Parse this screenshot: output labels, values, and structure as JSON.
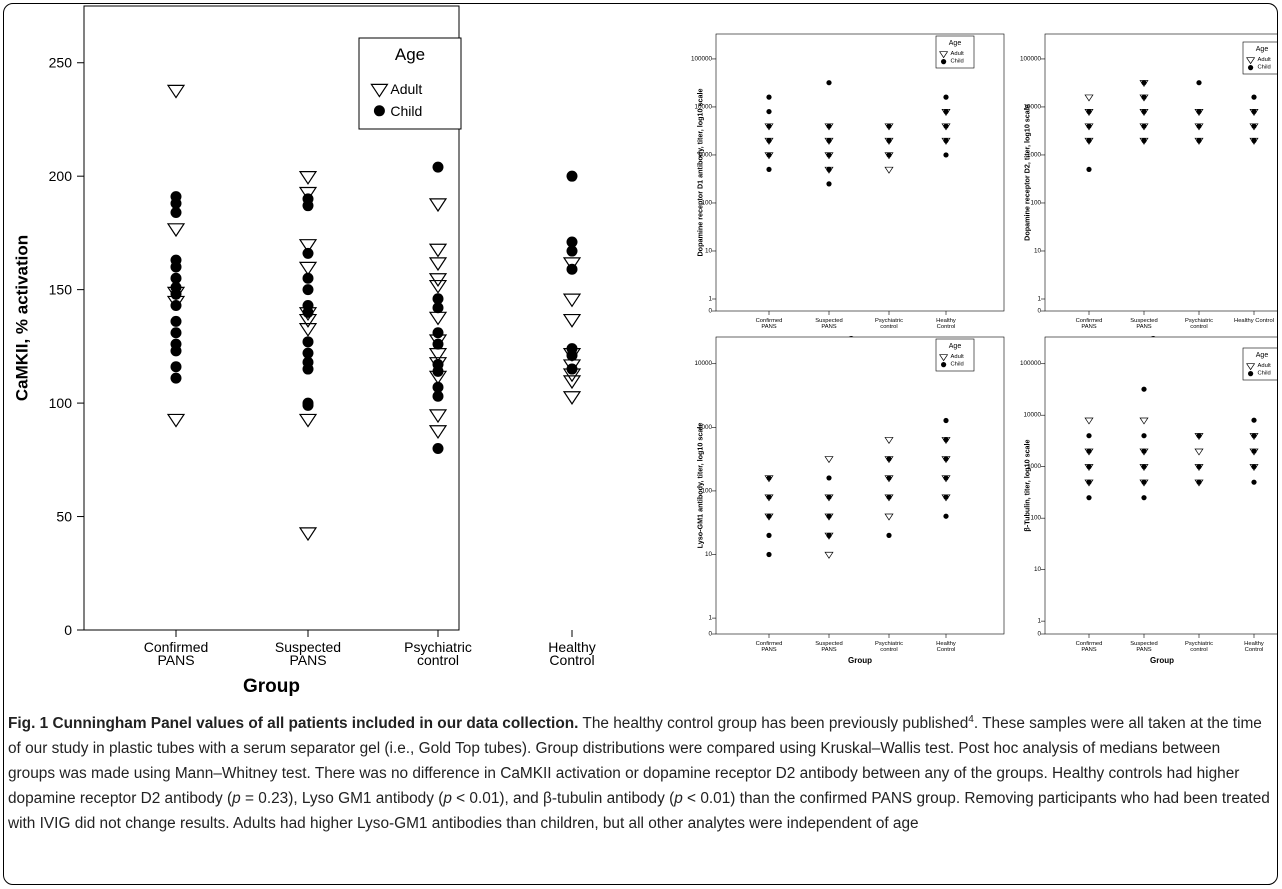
{
  "caption": {
    "label": "Fig. 1",
    "title": "Cunningham Panel values of all patients included in our data collection.",
    "parts": [
      {
        "t": " The healthy control group has been previously published"
      },
      {
        "t": "4",
        "sup": true
      },
      {
        "t": ". These samples were all taken at the time of our study in plastic tubes with a serum separator gel (i.e., Gold Top tubes). Group distributions were compared using Kruskal–Wallis test. Post hoc analysis of medians between groups was made using Mann–Whitney test. There was no difference in CaMKII activation or dopamine receptor D2 antibody between any of the groups. Healthy controls had higher dopamine receptor D2 antibody ("
      },
      {
        "t": "p",
        "i": true
      },
      {
        "t": " = 0.23), Lyso GM1 antibody ("
      },
      {
        "t": "p",
        "i": true
      },
      {
        "t": " < 0.01), and β-tubulin antibody ("
      },
      {
        "t": "p",
        "i": true
      },
      {
        "t": " < 0.01) than the confirmed PANS group. Removing participants who had been treated with IVIG did not change results. Adults had higher Lyso-GM1 antibodies than children, but all other analytes were independent of age"
      }
    ]
  },
  "chart_data": [
    {
      "id": "camkii",
      "type": "scatter",
      "title": "",
      "xlabel": "Group",
      "ylabel": "CaMKII, % activation",
      "ylim": [
        0,
        275
      ],
      "yticks": [
        0,
        50,
        100,
        150,
        200,
        250
      ],
      "scale": "linear",
      "categories": [
        "Confirmed\nPANS",
        "Suspected\nPANS",
        "Psychiatric\ncontrol",
        "Healthy\nControl"
      ],
      "legend": {
        "title": "Age",
        "position": "top-right",
        "entries": [
          "Adult",
          "Child"
        ]
      },
      "series": [
        {
          "name": "Adult",
          "marker": "triangle-down-open",
          "points": [
            [
              0,
              238
            ],
            [
              0,
              177
            ],
            [
              0,
              149
            ],
            [
              0,
              145
            ],
            [
              0,
              93
            ],
            [
              1,
              200
            ],
            [
              1,
              193
            ],
            [
              1,
              170
            ],
            [
              1,
              160
            ],
            [
              1,
              140
            ],
            [
              1,
              137
            ],
            [
              1,
              133
            ],
            [
              1,
              93
            ],
            [
              1,
              43
            ],
            [
              2,
              188
            ],
            [
              2,
              168
            ],
            [
              2,
              162
            ],
            [
              2,
              155
            ],
            [
              2,
              152
            ],
            [
              2,
              138
            ],
            [
              2,
              128
            ],
            [
              2,
              122
            ],
            [
              2,
              118
            ],
            [
              2,
              112
            ],
            [
              2,
              95
            ],
            [
              2,
              88
            ],
            [
              3,
              162
            ],
            [
              3,
              146
            ],
            [
              3,
              137
            ],
            [
              3,
              122
            ],
            [
              3,
              117
            ],
            [
              3,
              113
            ],
            [
              3,
              110
            ],
            [
              3,
              103
            ]
          ]
        },
        {
          "name": "Child",
          "marker": "circle-filled",
          "points": [
            [
              0,
              191
            ],
            [
              0,
              188
            ],
            [
              0,
              184
            ],
            [
              0,
              163
            ],
            [
              0,
              160
            ],
            [
              0,
              155
            ],
            [
              0,
              151
            ],
            [
              0,
              148
            ],
            [
              0,
              143
            ],
            [
              0,
              136
            ],
            [
              0,
              131
            ],
            [
              0,
              126
            ],
            [
              0,
              123
            ],
            [
              0,
              116
            ],
            [
              0,
              111
            ],
            [
              1,
              190
            ],
            [
              1,
              187
            ],
            [
              1,
              166
            ],
            [
              1,
              155
            ],
            [
              1,
              150
            ],
            [
              1,
              143
            ],
            [
              1,
              140
            ],
            [
              1,
              127
            ],
            [
              1,
              122
            ],
            [
              1,
              118
            ],
            [
              1,
              115
            ],
            [
              1,
              100
            ],
            [
              1,
              99
            ],
            [
              2,
              204
            ],
            [
              2,
              146
            ],
            [
              2,
              142
            ],
            [
              2,
              131
            ],
            [
              2,
              126
            ],
            [
              2,
              117
            ],
            [
              2,
              114
            ],
            [
              2,
              107
            ],
            [
              2,
              103
            ],
            [
              2,
              80
            ],
            [
              3,
              200
            ],
            [
              3,
              171
            ],
            [
              3,
              167
            ],
            [
              3,
              159
            ],
            [
              3,
              124
            ],
            [
              3,
              121
            ],
            [
              3,
              115
            ]
          ]
        }
      ]
    },
    {
      "id": "d1",
      "type": "scatter",
      "title": "",
      "xlabel": "Group",
      "ylabel": "Dopamine receptor D1 antibody, titer, log10 scale",
      "scale": "log10",
      "ylim": [
        0,
        100000
      ],
      "yticks": [
        0,
        1,
        10,
        100,
        1000,
        10000,
        100000
      ],
      "categories": [
        "Confirmed\nPANS",
        "Suspected\nPANS",
        "Psychiatric\ncontrol",
        "Healthy\nControl"
      ],
      "legend": {
        "title": "Age",
        "position": "top-right",
        "entries": [
          "Adult",
          "Child"
        ]
      },
      "series": [
        {
          "name": "Adult",
          "marker": "triangle-down-open",
          "points": [
            [
              0,
              4000
            ],
            [
              0,
              2000
            ],
            [
              0,
              1000
            ],
            [
              1,
              4000
            ],
            [
              1,
              2000
            ],
            [
              1,
              1000
            ],
            [
              1,
              500
            ],
            [
              2,
              4000
            ],
            [
              2,
              2000
            ],
            [
              2,
              1000
            ],
            [
              2,
              500
            ],
            [
              3,
              8000
            ],
            [
              3,
              4000
            ],
            [
              3,
              2000
            ]
          ]
        },
        {
          "name": "Child",
          "marker": "circle-filled",
          "points": [
            [
              0,
              16000
            ],
            [
              0,
              8000
            ],
            [
              0,
              4000
            ],
            [
              0,
              2000
            ],
            [
              0,
              1000
            ],
            [
              0,
              500
            ],
            [
              1,
              32000
            ],
            [
              1,
              4000
            ],
            [
              1,
              2000
            ],
            [
              1,
              1000
            ],
            [
              1,
              500
            ],
            [
              1,
              250
            ],
            [
              2,
              4000
            ],
            [
              2,
              2000
            ],
            [
              2,
              1000
            ],
            [
              3,
              16000
            ],
            [
              3,
              8000
            ],
            [
              3,
              4000
            ],
            [
              3,
              2000
            ],
            [
              3,
              1000
            ]
          ]
        }
      ]
    },
    {
      "id": "d2",
      "type": "scatter",
      "title": "",
      "xlabel": "Group",
      "ylabel": "Dopamine receptor D2, titer, log10 scale",
      "scale": "log10",
      "ylim": [
        0,
        100000
      ],
      "yticks": [
        0,
        1,
        10,
        100,
        1000,
        10000,
        100000
      ],
      "categories": [
        "Confirmed\nPANS",
        "Suspected\nPANS",
        "Psychiatric\ncontrol",
        "Healthy Control"
      ],
      "legend": {
        "title": "Age",
        "position": "top-right",
        "entries": [
          "Adult",
          "Child"
        ]
      },
      "series": [
        {
          "name": "Adult",
          "marker": "triangle-down-open",
          "points": [
            [
              0,
              16000
            ],
            [
              0,
              8000
            ],
            [
              0,
              4000
            ],
            [
              0,
              2000
            ],
            [
              1,
              32000
            ],
            [
              1,
              16000
            ],
            [
              1,
              8000
            ],
            [
              1,
              4000
            ],
            [
              1,
              2000
            ],
            [
              2,
              8000
            ],
            [
              2,
              4000
            ],
            [
              2,
              2000
            ],
            [
              3,
              8000
            ],
            [
              3,
              4000
            ],
            [
              3,
              2000
            ]
          ]
        },
        {
          "name": "Child",
          "marker": "circle-filled",
          "points": [
            [
              0,
              8000
            ],
            [
              0,
              4000
            ],
            [
              0,
              2000
            ],
            [
              0,
              500
            ],
            [
              1,
              32000
            ],
            [
              1,
              16000
            ],
            [
              1,
              8000
            ],
            [
              1,
              4000
            ],
            [
              1,
              2000
            ],
            [
              2,
              32000
            ],
            [
              2,
              8000
            ],
            [
              2,
              4000
            ],
            [
              2,
              2000
            ],
            [
              3,
              16000
            ],
            [
              3,
              8000
            ],
            [
              3,
              4000
            ],
            [
              3,
              2000
            ]
          ]
        }
      ]
    },
    {
      "id": "lyso",
      "type": "scatter",
      "title": "",
      "xlabel": "Group",
      "ylabel": "Lyso-GM1 antibody, titer, log10 scale",
      "scale": "log10",
      "ylim": [
        0,
        10000
      ],
      "yticks": [
        0,
        1,
        10,
        100,
        1000,
        10000
      ],
      "categories": [
        "Confirmed\nPANS",
        "Suspected\nPANS",
        "Psychiatric\ncontrol",
        "Healthy\nControl"
      ],
      "legend": {
        "title": "Age",
        "position": "top-right",
        "entries": [
          "Adult",
          "Child"
        ]
      },
      "series": [
        {
          "name": "Adult",
          "marker": "triangle-down-open",
          "points": [
            [
              0,
              160
            ],
            [
              0,
              80
            ],
            [
              0,
              40
            ],
            [
              1,
              320
            ],
            [
              1,
              80
            ],
            [
              1,
              40
            ],
            [
              1,
              20
            ],
            [
              1,
              10
            ],
            [
              2,
              640
            ],
            [
              2,
              320
            ],
            [
              2,
              160
            ],
            [
              2,
              80
            ],
            [
              2,
              40
            ],
            [
              3,
              640
            ],
            [
              3,
              320
            ],
            [
              3,
              160
            ],
            [
              3,
              80
            ]
          ]
        },
        {
          "name": "Child",
          "marker": "circle-filled",
          "points": [
            [
              0,
              160
            ],
            [
              0,
              80
            ],
            [
              0,
              40
            ],
            [
              0,
              20
            ],
            [
              0,
              10
            ],
            [
              1,
              160
            ],
            [
              1,
              80
            ],
            [
              1,
              40
            ],
            [
              1,
              20
            ],
            [
              2,
              320
            ],
            [
              2,
              160
            ],
            [
              2,
              80
            ],
            [
              2,
              20
            ],
            [
              3,
              1280
            ],
            [
              3,
              640
            ],
            [
              3,
              320
            ],
            [
              3,
              160
            ],
            [
              3,
              80
            ],
            [
              3,
              40
            ]
          ]
        }
      ]
    },
    {
      "id": "tubulin",
      "type": "scatter",
      "title": "",
      "xlabel": "Group",
      "ylabel": "β-Tubulin, titer, log10 scale",
      "scale": "log10",
      "ylim": [
        0,
        100000
      ],
      "yticks": [
        0,
        1,
        10,
        100,
        1000,
        10000,
        100000
      ],
      "categories": [
        "Confirmed\nPANS",
        "Suspected\nPANS",
        "Psychiatric\ncontrol",
        "Healthy\nControl"
      ],
      "legend": {
        "title": "Age",
        "position": "top-right",
        "entries": [
          "Adult",
          "Child"
        ]
      },
      "series": [
        {
          "name": "Adult",
          "marker": "triangle-down-open",
          "points": [
            [
              0,
              8000
            ],
            [
              0,
              2000
            ],
            [
              0,
              1000
            ],
            [
              0,
              500
            ],
            [
              1,
              8000
            ],
            [
              1,
              2000
            ],
            [
              1,
              1000
            ],
            [
              1,
              500
            ],
            [
              2,
              4000
            ],
            [
              2,
              2000
            ],
            [
              2,
              1000
            ],
            [
              2,
              500
            ],
            [
              3,
              4000
            ],
            [
              3,
              2000
            ],
            [
              3,
              1000
            ]
          ]
        },
        {
          "name": "Child",
          "marker": "circle-filled",
          "points": [
            [
              0,
              4000
            ],
            [
              0,
              2000
            ],
            [
              0,
              1000
            ],
            [
              0,
              500
            ],
            [
              0,
              250
            ],
            [
              1,
              32000
            ],
            [
              1,
              4000
            ],
            [
              1,
              2000
            ],
            [
              1,
              1000
            ],
            [
              1,
              500
            ],
            [
              1,
              250
            ],
            [
              2,
              4000
            ],
            [
              2,
              1000
            ],
            [
              2,
              500
            ],
            [
              3,
              8000
            ],
            [
              3,
              4000
            ],
            [
              3,
              2000
            ],
            [
              3,
              1000
            ],
            [
              3,
              500
            ]
          ]
        }
      ]
    }
  ]
}
